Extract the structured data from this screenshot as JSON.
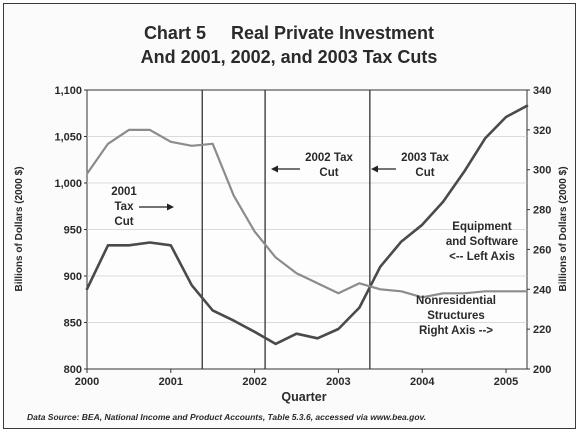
{
  "chart_data": {
    "type": "line",
    "title": "Chart 5     Real Private Investment",
    "subtitle": "And 2001, 2002, and 2003 Tax Cuts",
    "xlabel": "Quarter",
    "ylabel_left": "Billions of Dollars (2000 $)",
    "ylabel_right": "Billions of Dollars (2000 $)",
    "x_ticks": [
      "2000",
      "2001",
      "2002",
      "2003",
      "2004",
      "2005"
    ],
    "ylim_left": [
      800,
      1100
    ],
    "ylim_right": [
      200,
      340
    ],
    "yticks_left": [
      "800",
      "850",
      "900",
      "950",
      "1,000",
      "1,050",
      "1,100"
    ],
    "yticks_right": [
      "200",
      "220",
      "240",
      "260",
      "280",
      "300",
      "320",
      "340"
    ],
    "x_range": [
      2000,
      2005.25
    ],
    "grid": true,
    "series": [
      {
        "name": "Equipment and Software",
        "axis": "left",
        "color": "#4a4a4a",
        "x": [
          2000.0,
          2000.25,
          2000.5,
          2000.75,
          2001.0,
          2001.25,
          2001.5,
          2001.75,
          2002.0,
          2002.25,
          2002.5,
          2002.75,
          2003.0,
          2003.25,
          2003.5,
          2003.75,
          2004.0,
          2004.25,
          2004.5,
          2004.75,
          2005.0,
          2005.25
        ],
        "values": [
          886,
          933,
          933,
          936,
          933,
          890,
          863,
          852,
          840,
          827,
          838,
          833,
          843,
          866,
          910,
          937,
          955,
          980,
          1012,
          1048,
          1071,
          1083
        ]
      },
      {
        "name": "Nonresidential Structures",
        "axis": "right",
        "color": "#8c8c8c",
        "x": [
          2000.0,
          2000.25,
          2000.5,
          2000.75,
          2001.0,
          2001.25,
          2001.5,
          2001.75,
          2002.0,
          2002.25,
          2002.5,
          2002.75,
          2003.0,
          2003.25,
          2003.5,
          2003.75,
          2004.0,
          2004.25,
          2004.5,
          2004.75,
          2005.0,
          2005.25
        ],
        "values": [
          298,
          313,
          320,
          320,
          314,
          312,
          313,
          287,
          269,
          256,
          248,
          243,
          238,
          243,
          240,
          239,
          236,
          238,
          238,
          239,
          239,
          239
        ]
      }
    ],
    "tax_cut_lines": [
      2001.375,
      2002.125,
      2003.375
    ],
    "annotations": [
      {
        "lines": [
          "2001",
          "Tax",
          "Cut"
        ],
        "arrow": "right"
      },
      {
        "lines": [
          "2002 Tax",
          "Cut"
        ],
        "arrow": "left"
      },
      {
        "lines": [
          "2003 Tax",
          "Cut"
        ],
        "arrow": "left"
      }
    ],
    "series_labels": [
      {
        "lines": [
          "Equipment",
          "and Software",
          "<-- Left Axis"
        ]
      },
      {
        "lines": [
          "Nonresidential",
          "Structures",
          "Right Axis -->"
        ]
      }
    ],
    "source": "Data Source: BEA, National Income and Product Accounts, Table 5.3.6, accessed via www.bea.gov."
  }
}
